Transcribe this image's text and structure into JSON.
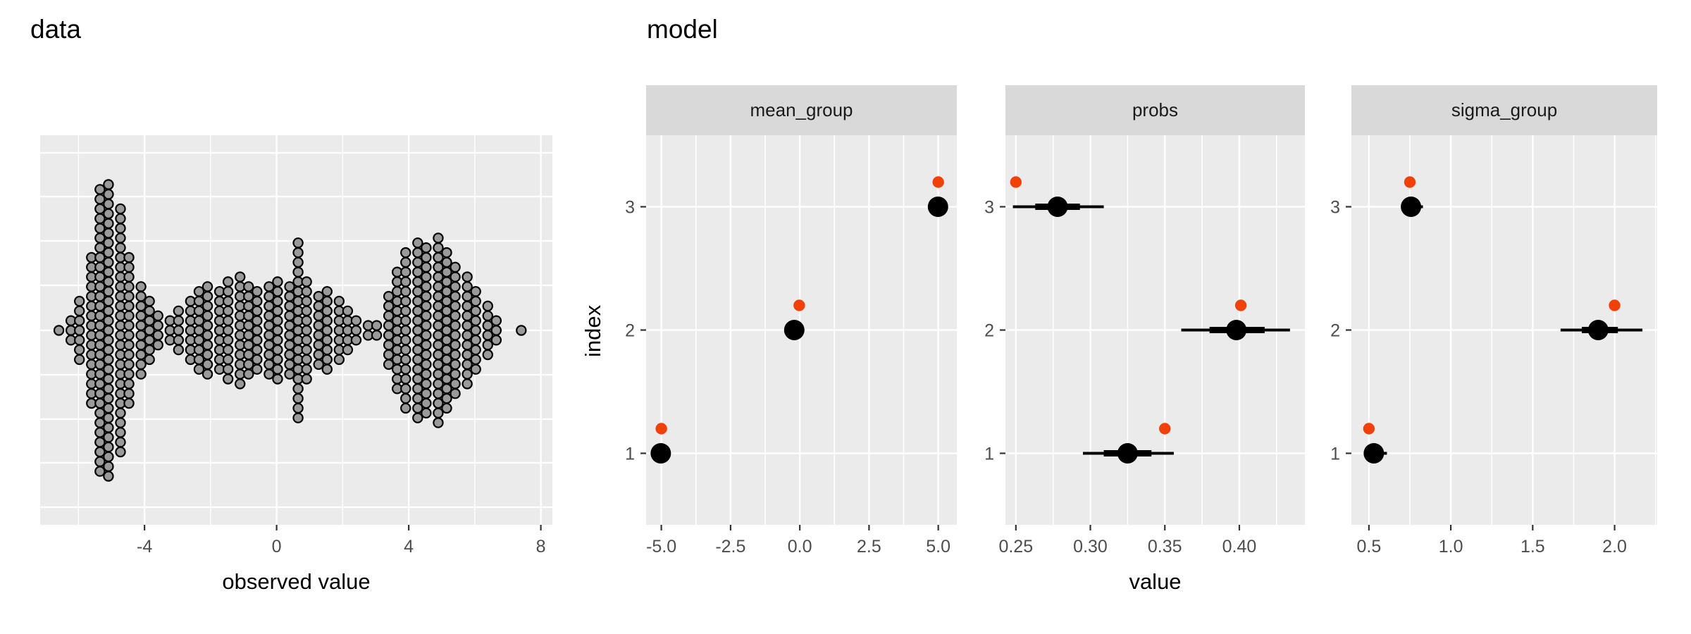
{
  "colors": {
    "panel_bg": "#ebebeb",
    "strip_bg": "#d9d9d9",
    "grid": "#ffffff",
    "data_dot_fill": "#9a9a9a",
    "data_dot_stroke": "#000000",
    "estimate_black": "#000000",
    "true_orange": "#f14109",
    "tick_text": "#4d4d4d",
    "tick_mark": "#333333"
  },
  "chart_data": [
    {
      "id": "data-plot",
      "type": "dotplot",
      "title": "data",
      "xlabel": "observed value",
      "x_axis": {
        "lim": [
          -7.16,
          8.35
        ],
        "ticks": [
          -4,
          0,
          4,
          8
        ],
        "tick_labels": [
          "-4",
          "0",
          "4",
          "8"
        ],
        "minor": [
          -6,
          -2,
          2,
          6
        ]
      },
      "y_axis": {
        "visible": false
      },
      "description": "symmetric dot-density (beeswarm) of observed values, mixture of three groups near -5, 0 and 5 plus one outlier",
      "dot_bins": [
        [
          -6.55,
          1
        ],
        [
          -6.25,
          3
        ],
        [
          -5.95,
          7
        ],
        [
          -5.65,
          16
        ],
        [
          -5.35,
          30
        ],
        [
          -5.05,
          31
        ],
        [
          -4.75,
          26
        ],
        [
          -4.45,
          16
        ],
        [
          -4.15,
          10
        ],
        [
          -3.85,
          7
        ],
        [
          -3.55,
          4
        ],
        [
          -3.25,
          3
        ],
        [
          -2.95,
          5
        ],
        [
          -2.65,
          7
        ],
        [
          -2.35,
          9
        ],
        [
          -2.05,
          10
        ],
        [
          -1.75,
          9
        ],
        [
          -1.45,
          11
        ],
        [
          -1.15,
          12
        ],
        [
          -0.85,
          10
        ],
        [
          -0.55,
          9
        ],
        [
          -0.25,
          10
        ],
        [
          0.05,
          11
        ],
        [
          0.35,
          10
        ],
        [
          0.65,
          19
        ],
        [
          0.95,
          11
        ],
        [
          1.25,
          8
        ],
        [
          1.55,
          9
        ],
        [
          1.85,
          7
        ],
        [
          2.15,
          5
        ],
        [
          2.45,
          3
        ],
        [
          2.75,
          2
        ],
        [
          3.05,
          2
        ],
        [
          3.35,
          8
        ],
        [
          3.65,
          13
        ],
        [
          3.95,
          17
        ],
        [
          4.25,
          19
        ],
        [
          4.55,
          18
        ],
        [
          4.85,
          20
        ],
        [
          5.15,
          17
        ],
        [
          5.45,
          14
        ],
        [
          5.75,
          12
        ],
        [
          6.05,
          9
        ],
        [
          6.35,
          6
        ],
        [
          6.65,
          3
        ],
        [
          7.45,
          1
        ]
      ]
    },
    {
      "id": "model-plot",
      "type": "point-interval-facets",
      "title": "model",
      "xlabel": "value",
      "ylabel": "index",
      "y_axis": {
        "lim": [
          0.42,
          3.58
        ],
        "ticks": [
          3,
          2,
          1
        ],
        "tick_labels": [
          "3",
          "2",
          "1"
        ]
      },
      "true_point_offset": 0.2,
      "facets": [
        {
          "label": "mean_group",
          "x_axis": {
            "lim": [
              -5.55,
              5.67
            ],
            "ticks": [
              -5,
              -2.5,
              0,
              2.5,
              5
            ],
            "tick_labels": [
              "-5.0",
              "-2.5",
              "0.0",
              "2.5",
              "5.0"
            ],
            "minor": [
              -3.75,
              -1.25,
              1.25,
              3.75
            ]
          },
          "points": [
            {
              "index": 1,
              "estimate": -5.02,
              "interval_thick": [
                -5.12,
                -4.92
              ],
              "interval_thin": [
                -5.3,
                -4.74
              ],
              "true_value": -5.0
            },
            {
              "index": 2,
              "estimate": -0.2,
              "interval_thick": [
                -0.31,
                -0.09
              ],
              "interval_thin": [
                -0.46,
                0.07
              ],
              "true_value": -0.02
            },
            {
              "index": 3,
              "estimate": 4.99,
              "interval_thick": [
                4.89,
                5.09
              ],
              "interval_thin": [
                4.73,
                5.25
              ],
              "true_value": 5.0
            }
          ]
        },
        {
          "label": "probs",
          "x_axis": {
            "lim": [
              0.243,
              0.444
            ],
            "ticks": [
              0.25,
              0.3,
              0.35,
              0.4
            ],
            "tick_labels": [
              "0.25",
              "0.30",
              "0.35",
              "0.40"
            ],
            "minor": [
              0.275,
              0.325,
              0.375,
              0.425
            ]
          },
          "points": [
            {
              "index": 1,
              "estimate": 0.325,
              "interval_thick": [
                0.309,
                0.341
              ],
              "interval_thin": [
                0.295,
                0.356
              ],
              "true_value": 0.35
            },
            {
              "index": 2,
              "estimate": 0.398,
              "interval_thick": [
                0.38,
                0.417
              ],
              "interval_thin": [
                0.361,
                0.434
              ],
              "true_value": 0.401
            },
            {
              "index": 3,
              "estimate": 0.278,
              "interval_thick": [
                0.263,
                0.293
              ],
              "interval_thin": [
                0.248,
                0.309
              ],
              "true_value": 0.25
            }
          ]
        },
        {
          "label": "sigma_group",
          "x_axis": {
            "lim": [
              0.393,
              2.26
            ],
            "ticks": [
              0.5,
              1.0,
              1.5,
              2.0
            ],
            "tick_labels": [
              "0.5",
              "1.0",
              "1.5",
              "2.0"
            ],
            "minor": [
              0.75,
              1.25,
              1.75,
              2.25
            ]
          },
          "points": [
            {
              "index": 1,
              "estimate": 0.53,
              "interval_thick": [
                0.5,
                0.56
              ],
              "interval_thin": [
                0.47,
                0.61
              ],
              "true_value": 0.5
            },
            {
              "index": 2,
              "estimate": 1.9,
              "interval_thick": [
                1.8,
                2.02
              ],
              "interval_thin": [
                1.67,
                2.17
              ],
              "true_value": 2.0
            },
            {
              "index": 3,
              "estimate": 0.757,
              "interval_thick": [
                0.74,
                0.79
              ],
              "interval_thin": [
                0.7,
                0.83
              ],
              "true_value": 0.75
            }
          ]
        }
      ]
    }
  ]
}
